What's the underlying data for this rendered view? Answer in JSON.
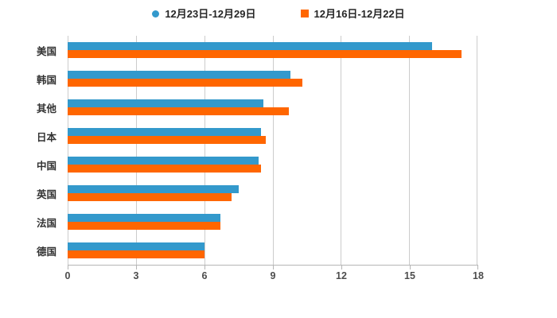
{
  "chart_data": {
    "type": "bar",
    "orientation": "horizontal",
    "title": "",
    "xlabel": "",
    "ylabel": "",
    "categories": [
      "美国",
      "韩国",
      "其他",
      "日本",
      "中国",
      "英国",
      "法国",
      "德国"
    ],
    "series": [
      {
        "name": "12月23日-12月29日",
        "color": "#3399cc",
        "marker": "circle",
        "values": [
          16.0,
          9.8,
          8.6,
          8.5,
          8.4,
          7.5,
          6.7,
          6.0
        ]
      },
      {
        "name": "12月16日-12月22日",
        "color": "#ff6600",
        "marker": "square",
        "values": [
          17.3,
          10.3,
          9.7,
          8.7,
          8.5,
          7.2,
          6.7,
          6.0
        ]
      }
    ],
    "xlim": [
      0,
      18
    ],
    "x_ticks": [
      "0",
      "3",
      "6",
      "9",
      "12",
      "15",
      "18"
    ],
    "grid": true,
    "legend_position": "top",
    "colors": {
      "background": "#ffffff",
      "grid_line": "#cccccc",
      "axis_line": "#b5b5b5",
      "tick_label": "#4d4d4d",
      "category_label": "#333333",
      "legend_label": "#262626"
    }
  }
}
